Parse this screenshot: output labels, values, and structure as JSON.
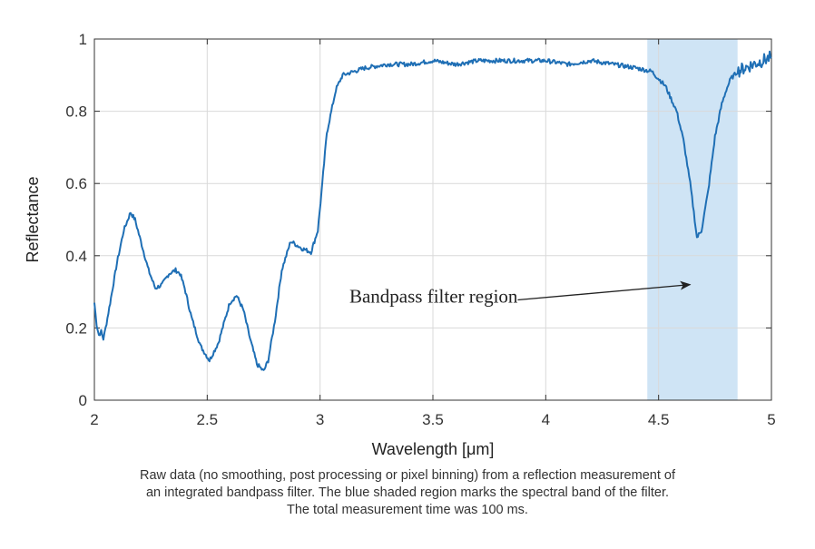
{
  "chart_data": {
    "type": "line",
    "xlabel": "Wavelength [μm]",
    "ylabel": "Reflectance",
    "xlim": [
      2,
      5
    ],
    "ylim": [
      0,
      1
    ],
    "grid": true,
    "xticks": [
      2,
      2.5,
      3,
      3.5,
      4,
      4.5,
      5
    ],
    "xtick_labels": [
      "2",
      "2.5",
      "3",
      "3.5",
      "4",
      "4.5",
      "5"
    ],
    "yticks": [
      0,
      0.2,
      0.4,
      0.6,
      0.8,
      1
    ],
    "ytick_labels": [
      "0",
      "0.2",
      "0.4",
      "0.6",
      "0.8",
      "1"
    ],
    "shaded_region": {
      "x_start": 4.45,
      "x_end": 4.85,
      "color": "#cfe4f5"
    },
    "line_color": "#1f6fb5",
    "annotation": {
      "text": "Bandpass filter region",
      "text_anchor_x": 3.13,
      "text_anchor_y": 0.27,
      "arrow_to_x": 4.64,
      "arrow_to_y": 0.32
    },
    "series": [
      {
        "name": "Reflectance",
        "x": [
          2.0,
          2.01,
          2.02,
          2.03,
          2.04,
          2.05,
          2.07,
          2.1,
          2.13,
          2.16,
          2.18,
          2.21,
          2.24,
          2.27,
          2.3,
          2.33,
          2.36,
          2.38,
          2.4,
          2.43,
          2.47,
          2.51,
          2.55,
          2.6,
          2.63,
          2.66,
          2.69,
          2.72,
          2.75,
          2.77,
          2.8,
          2.83,
          2.87,
          2.92,
          2.96,
          2.99,
          3.01,
          3.03,
          3.05,
          3.07,
          3.1,
          3.15,
          3.2,
          3.3,
          3.4,
          3.5,
          3.6,
          3.7,
          3.8,
          3.9,
          4.0,
          4.1,
          4.2,
          4.3,
          4.4,
          4.47,
          4.53,
          4.58,
          4.61,
          4.64,
          4.66,
          4.67,
          4.69,
          4.72,
          4.75,
          4.78,
          4.8,
          4.82,
          4.85,
          4.88,
          4.92,
          4.96,
          5.0
        ],
        "y": [
          0.27,
          0.21,
          0.18,
          0.19,
          0.17,
          0.2,
          0.27,
          0.38,
          0.47,
          0.52,
          0.5,
          0.43,
          0.36,
          0.31,
          0.32,
          0.35,
          0.36,
          0.35,
          0.31,
          0.23,
          0.15,
          0.11,
          0.16,
          0.27,
          0.29,
          0.25,
          0.17,
          0.1,
          0.08,
          0.11,
          0.22,
          0.36,
          0.44,
          0.42,
          0.41,
          0.47,
          0.6,
          0.74,
          0.8,
          0.86,
          0.9,
          0.91,
          0.92,
          0.93,
          0.93,
          0.94,
          0.93,
          0.94,
          0.94,
          0.94,
          0.94,
          0.93,
          0.94,
          0.93,
          0.92,
          0.91,
          0.87,
          0.8,
          0.72,
          0.6,
          0.5,
          0.45,
          0.47,
          0.58,
          0.73,
          0.82,
          0.86,
          0.89,
          0.91,
          0.92,
          0.93,
          0.94,
          0.95
        ]
      }
    ]
  },
  "caption": {
    "line1": "Raw data (no smoothing, post processing or pixel binning) from a reflection measurement of",
    "line2": "an integrated bandpass filter. The blue shaded region marks the spectral band of the filter.",
    "line3": "The total measurement time was 100 ms."
  }
}
